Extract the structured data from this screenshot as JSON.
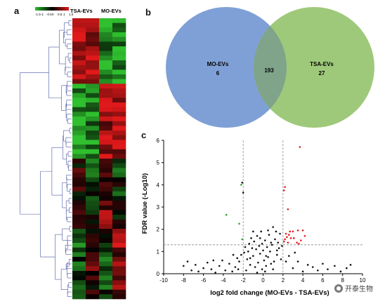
{
  "panels": {
    "a": "a",
    "b": "b",
    "c": "c"
  },
  "watermark": "开泰生物",
  "colors": {
    "green": "#2fbf2f",
    "red": "#e0191a",
    "dendrogram": "#4a55a0",
    "venn_left": "#7fa0d6",
    "venn_right": "#9fc97a",
    "venn_overlap": "#7fa48a",
    "point_black": "#111111",
    "point_red": "#e31a1c",
    "point_green": "#33a02c",
    "threshold_line": "#888888"
  },
  "chart_data": [
    {
      "type": "heatmap",
      "columns": [
        "TSA-EVs",
        "MO-EVs"
      ],
      "color_scale": {
        "labels": [
          "-1.5",
          "-1",
          "-0.5",
          "0",
          "0.5",
          "1",
          "1.5"
        ],
        "low_color": "#2fbf2f",
        "mid_color": "#000000",
        "high_color": "#e0191a"
      },
      "n_samples": 4,
      "n_rows": 60,
      "groups": [
        {
          "group": "TSA-EVs",
          "samples": 2
        },
        {
          "group": "MO-EVs",
          "samples": 2
        }
      ],
      "row_pattern": "upper block high in TSA-EVs / low in MO-EVs; middle block low in TSA-EVs / high in MO-EVs; lower block mixed",
      "dendrogram": true
    },
    {
      "type": "venn",
      "sets": [
        {
          "name": "MO-EVs",
          "only": 6
        },
        {
          "name": "TSA-EVs",
          "only": 27
        }
      ],
      "intersection": 193
    },
    {
      "type": "scatter",
      "xlabel": "log2 fold change (MO-EVs - TSA-EVs)",
      "ylabel": "FDR value (-Log10)",
      "xlim": [
        -10,
        10
      ],
      "ylim": [
        0,
        6
      ],
      "xticks": [
        -10,
        -8,
        -6,
        -4,
        -2,
        0,
        2,
        4,
        6,
        8,
        10
      ],
      "yticks": [
        0,
        1,
        2,
        3,
        4,
        5,
        6
      ],
      "thresholds": {
        "x": [
          -2,
          2
        ],
        "y": 1.3
      },
      "series": [
        {
          "color": "red",
          "points": [
            [
              3.7,
              5.7
            ],
            [
              2.1,
              3.75
            ],
            [
              2.2,
              3.9
            ],
            [
              2.5,
              2.9
            ],
            [
              3.0,
              1.9
            ],
            [
              3.5,
              1.95
            ],
            [
              4.0,
              1.95
            ],
            [
              2.3,
              1.8
            ],
            [
              2.4,
              1.65
            ],
            [
              2.6,
              1.75
            ],
            [
              2.2,
              1.55
            ],
            [
              2.8,
              1.6
            ],
            [
              3.1,
              1.6
            ],
            [
              3.4,
              1.4
            ],
            [
              3.6,
              1.35
            ],
            [
              2.1,
              1.45
            ],
            [
              4.2,
              1.7
            ],
            [
              2.7,
              1.9
            ],
            [
              3.8,
              1.5
            ],
            [
              2.5,
              1.4
            ]
          ]
        },
        {
          "color": "green",
          "points": [
            [
              -3.7,
              2.65
            ],
            [
              -2.2,
              4.0
            ],
            [
              -2.4,
              2.25
            ],
            [
              -2.1,
              1.55
            ]
          ]
        },
        {
          "color": "black",
          "points": [
            [
              -2.0,
              3.65
            ],
            [
              -2.1,
              4.1
            ],
            [
              -8.0,
              0.35
            ],
            [
              -7.6,
              0.55
            ],
            [
              -7.2,
              0.15
            ],
            [
              -6.8,
              0.4
            ],
            [
              -6.5,
              0.1
            ],
            [
              -6.0,
              0.25
            ],
            [
              -5.6,
              0.5
            ],
            [
              -5.2,
              0.2
            ],
            [
              -4.8,
              0.05
            ],
            [
              -4.4,
              0.35
            ],
            [
              -4.1,
              0.6
            ],
            [
              -3.8,
              0.15
            ],
            [
              -3.4,
              0.45
            ],
            [
              -3.1,
              0.1
            ],
            [
              -2.8,
              0.3
            ],
            [
              -2.6,
              0.7
            ],
            [
              -2.4,
              0.55
            ],
            [
              -2.2,
              0.85
            ],
            [
              -1.9,
              0.95
            ],
            [
              -1.8,
              1.2
            ],
            [
              -1.6,
              0.65
            ],
            [
              -1.5,
              1.0
            ],
            [
              -1.4,
              1.35
            ],
            [
              -1.3,
              0.4
            ],
            [
              -1.2,
              1.6
            ],
            [
              -1.1,
              1.15
            ],
            [
              -1.0,
              0.8
            ],
            [
              -0.9,
              1.45
            ],
            [
              -0.8,
              0.3
            ],
            [
              -0.7,
              1.1
            ],
            [
              -0.6,
              1.7
            ],
            [
              -0.5,
              0.5
            ],
            [
              -0.4,
              1.25
            ],
            [
              -0.3,
              0.9
            ],
            [
              -0.2,
              1.9
            ],
            [
              -0.1,
              0.2
            ],
            [
              0.0,
              1.05
            ],
            [
              0.1,
              0.6
            ],
            [
              0.2,
              1.5
            ],
            [
              0.3,
              0.35
            ],
            [
              0.4,
              1.2
            ],
            [
              0.5,
              0.75
            ],
            [
              0.6,
              1.75
            ],
            [
              0.7,
              1.0
            ],
            [
              0.8,
              0.45
            ],
            [
              0.9,
              1.3
            ],
            [
              1.0,
              2.1
            ],
            [
              1.1,
              0.55
            ],
            [
              1.2,
              1.55
            ],
            [
              1.3,
              1.9
            ],
            [
              1.4,
              0.85
            ],
            [
              1.5,
              1.4
            ],
            [
              1.6,
              1.15
            ],
            [
              1.7,
              1.8
            ],
            [
              1.8,
              0.65
            ],
            [
              1.9,
              1.25
            ],
            [
              -1.7,
              0.15
            ],
            [
              -0.6,
              0.05
            ],
            [
              0.2,
              0.1
            ],
            [
              1.0,
              0.2
            ],
            [
              -2.5,
              0.2
            ],
            [
              3.0,
              0.25
            ],
            [
              3.5,
              0.55
            ],
            [
              4.0,
              0.1
            ],
            [
              4.5,
              0.4
            ],
            [
              5.0,
              0.3
            ],
            [
              5.5,
              0.15
            ],
            [
              6.0,
              0.45
            ],
            [
              6.5,
              0.2
            ],
            [
              7.2,
              0.35
            ],
            [
              7.8,
              0.1
            ],
            [
              8.4,
              0.25
            ],
            [
              8.8,
              0.4
            ],
            [
              2.6,
              0.8
            ],
            [
              2.3,
              0.55
            ],
            [
              3.2,
              0.95
            ],
            [
              -3.0,
              0.85
            ],
            [
              -5.0,
              0.6
            ],
            [
              0.5,
              1.95
            ],
            [
              -0.3,
              1.6
            ],
            [
              0.8,
              1.4
            ],
            [
              -1.0,
              1.9
            ],
            [
              1.4,
              1.05
            ],
            [
              -0.1,
              1.35
            ],
            [
              0.3,
              0.8
            ],
            [
              -1.3,
              0.7
            ]
          ]
        }
      ]
    }
  ]
}
